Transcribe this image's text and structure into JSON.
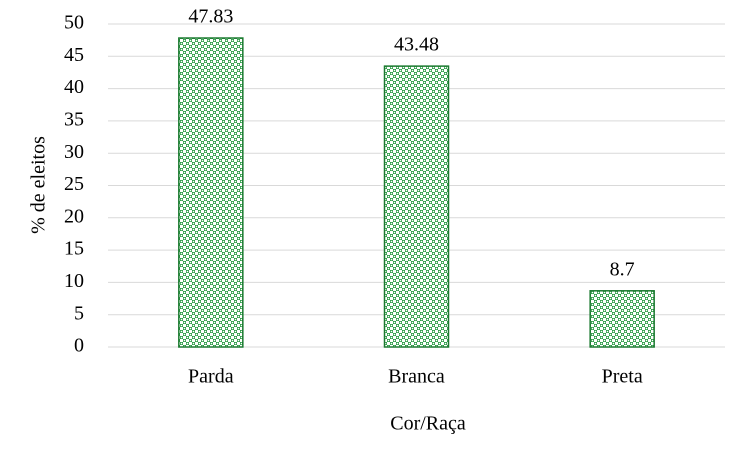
{
  "chart_data": {
    "type": "bar",
    "categories": [
      "Parda",
      "Branca",
      "Preta"
    ],
    "values": [
      47.83,
      43.48,
      8.7
    ],
    "color": "#2f9e48",
    "edgecolor": "#1b7a30",
    "xlabel": "Cor/Raça",
    "ylabel": "% de eleitos",
    "ylim": [
      0,
      50
    ],
    "yticks": [
      0,
      5,
      10,
      15,
      20,
      25,
      30,
      35,
      40,
      45,
      50
    ],
    "grid": true
  }
}
